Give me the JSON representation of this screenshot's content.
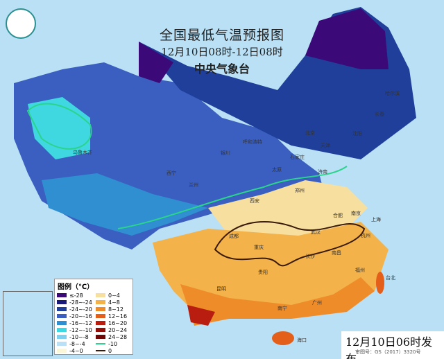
{
  "title": "全国最低气温预报图",
  "period": "12月10日08时-12日08时",
  "agency": "中央气象台",
  "issued": "12月10日06时发布",
  "review_number": "审图号：GS（2017）3320号",
  "legend": {
    "title": "图例（℃）",
    "fills": [
      {
        "label": "≤-28",
        "color": "#3b0a78"
      },
      {
        "label": "-28~-24",
        "color": "#1a1a7a"
      },
      {
        "label": "-24~-20",
        "color": "#1f3f9a"
      },
      {
        "label": "-20~-16",
        "color": "#3a5fc0"
      },
      {
        "label": "-16~-12",
        "color": "#2f8fd0"
      },
      {
        "label": "-12~-10",
        "color": "#3fd8e0"
      },
      {
        "label": "-10~-8",
        "color": "#7fd0ef"
      },
      {
        "label": "-8~-4",
        "color": "#b9e0f5"
      },
      {
        "label": "-4~0",
        "color": "#fbf6d8"
      },
      {
        "label": "0~4",
        "color": "#f7df9f"
      },
      {
        "label": "4~8",
        "color": "#f3b24a"
      },
      {
        "label": "8~12",
        "color": "#ef8c2a"
      },
      {
        "label": "12~16",
        "color": "#e35f1a"
      },
      {
        "label": "16~20",
        "color": "#b81d10"
      },
      {
        "label": "20~24",
        "color": "#8e0f0a"
      },
      {
        "label": "24~28",
        "color": "#6e0606"
      }
    ],
    "lines": [
      {
        "label": "-10",
        "color": "#2bd48c"
      },
      {
        "label": "0",
        "color": "#3a1a0a"
      }
    ]
  },
  "cities": [
    "乌鲁木齐",
    "西宁",
    "兰州",
    "银川",
    "呼和浩特",
    "北京",
    "天津",
    "石家庄",
    "太原",
    "济南",
    "郑州",
    "西安",
    "成都",
    "重庆",
    "武汉",
    "合肥",
    "南京",
    "上海",
    "杭州",
    "长沙",
    "南昌",
    "福州",
    "贵阳",
    "昆明",
    "南宁",
    "广州",
    "海口",
    "沈阳",
    "长春",
    "哈尔滨",
    "台北"
  ]
}
